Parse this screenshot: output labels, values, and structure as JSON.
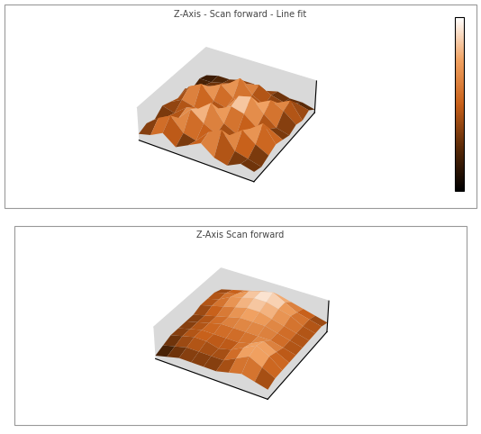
{
  "chart_data": [
    {
      "type": "surface",
      "title": "Z-Axis - Scan forward - Line fit",
      "x": [
        0,
        1,
        2,
        3,
        4,
        5,
        6,
        7,
        8,
        9
      ],
      "y": [
        0,
        1,
        2,
        3,
        4,
        5,
        6,
        7,
        8,
        9
      ],
      "xlim": [
        0,
        9
      ],
      "ylim": [
        0,
        9
      ],
      "zlim": [
        0,
        1
      ],
      "tick_labels": false,
      "color_range": [
        0,
        1
      ],
      "z": [
        [
          0.2,
          0.3,
          0.5,
          0.2,
          0.4,
          0.6,
          0.3,
          0.2,
          0.4,
          0.3
        ],
        [
          0.3,
          0.6,
          0.8,
          0.4,
          0.3,
          0.7,
          0.9,
          0.4,
          0.3,
          0.2
        ],
        [
          0.2,
          0.4,
          0.5,
          0.9,
          0.6,
          0.4,
          0.5,
          0.8,
          0.5,
          0.3
        ],
        [
          0.4,
          0.3,
          0.6,
          0.7,
          1.0,
          0.5,
          0.3,
          0.6,
          0.9,
          0.4
        ],
        [
          0.3,
          0.5,
          0.4,
          0.3,
          0.6,
          0.8,
          0.7,
          0.4,
          0.5,
          0.3
        ],
        [
          0.2,
          0.7,
          0.9,
          0.5,
          0.4,
          0.9,
          1.0,
          0.6,
          0.3,
          0.2
        ],
        [
          0.3,
          0.4,
          0.6,
          0.8,
          0.5,
          0.4,
          0.6,
          0.8,
          0.6,
          0.3
        ],
        [
          0.1,
          0.3,
          0.4,
          0.6,
          0.9,
          0.5,
          0.3,
          0.5,
          0.7,
          0.2
        ],
        [
          0.2,
          0.2,
          0.3,
          0.4,
          0.5,
          0.6,
          0.4,
          0.3,
          0.4,
          0.3
        ],
        [
          0.1,
          0.2,
          0.2,
          0.3,
          0.3,
          0.2,
          0.3,
          0.2,
          0.2,
          0.1
        ]
      ]
    },
    {
      "type": "surface",
      "title": "Z-Axis Scan forward",
      "x": [
        0,
        1,
        2,
        3,
        4,
        5,
        6,
        7,
        8,
        9
      ],
      "y": [
        0,
        1,
        2,
        3,
        4,
        5,
        6,
        7,
        8,
        9
      ],
      "xlim": [
        0,
        9
      ],
      "ylim": [
        0,
        9
      ],
      "zlim": [
        0,
        1
      ],
      "tick_labels": false,
      "z": [
        [
          0.1,
          0.2,
          0.3,
          0.3,
          0.3,
          0.3,
          0.4,
          0.5,
          0.4,
          0.3
        ],
        [
          0.2,
          0.3,
          0.4,
          0.4,
          0.4,
          0.4,
          0.6,
          0.8,
          0.6,
          0.4
        ],
        [
          0.3,
          0.4,
          0.5,
          0.5,
          0.4,
          0.5,
          0.7,
          0.9,
          0.7,
          0.4
        ],
        [
          0.3,
          0.4,
          0.5,
          0.5,
          0.5,
          0.5,
          0.6,
          0.8,
          0.6,
          0.4
        ],
        [
          0.3,
          0.4,
          0.5,
          0.6,
          0.6,
          0.6,
          0.6,
          0.6,
          0.5,
          0.4
        ],
        [
          0.3,
          0.4,
          0.5,
          0.6,
          0.7,
          0.7,
          0.7,
          0.6,
          0.5,
          0.4
        ],
        [
          0.4,
          0.5,
          0.6,
          0.7,
          0.8,
          0.8,
          0.7,
          0.6,
          0.5,
          0.4
        ],
        [
          0.4,
          0.5,
          0.7,
          0.8,
          0.9,
          0.9,
          0.8,
          0.7,
          0.5,
          0.4
        ],
        [
          0.4,
          0.5,
          0.6,
          0.8,
          0.9,
          1.0,
          0.8,
          0.6,
          0.5,
          0.4
        ],
        [
          0.3,
          0.4,
          0.5,
          0.6,
          0.7,
          0.7,
          0.6,
          0.5,
          0.4,
          0.3
        ]
      ]
    }
  ]
}
